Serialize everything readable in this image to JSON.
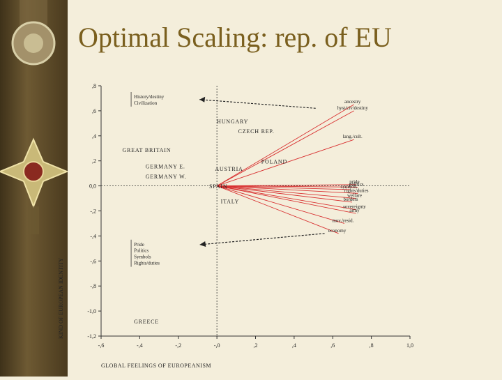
{
  "slide": {
    "title": "Optimal Scaling: rep. of EU"
  },
  "chart_data": {
    "type": "scatter",
    "xlabel": "GLOBAL FEELINGS OF EUROPEANISM",
    "ylabel": "KIND OF EUROPEAN IDENTITY",
    "xlim": [
      -0.6,
      1.0
    ],
    "ylim": [
      -1.2,
      0.8
    ],
    "x_ticks": [
      "-,6",
      "-,4",
      "-,2",
      "-,0",
      ",2",
      ",4",
      ",6",
      ",8",
      "1,0"
    ],
    "y_ticks": [
      ",8",
      ",6",
      ",4",
      ",2",
      "0,0",
      "-,2",
      "-,4",
      "-,6",
      "-,8",
      "-1,0",
      "-1,2"
    ],
    "countries": [
      {
        "name": "HUNGARY",
        "x": 0.0,
        "y": 0.5
      },
      {
        "name": "CZECH REP.",
        "x": 0.11,
        "y": 0.42
      },
      {
        "name": "GREAT BRITAIN",
        "x": -0.49,
        "y": 0.27
      },
      {
        "name": "POLAND",
        "x": 0.23,
        "y": 0.18
      },
      {
        "name": "GERMANY E.",
        "x": -0.37,
        "y": 0.14
      },
      {
        "name": "AUSTRIA",
        "x": -0.01,
        "y": 0.12
      },
      {
        "name": "GERMANY W.",
        "x": -0.37,
        "y": 0.06
      },
      {
        "name": "SPAIN",
        "x": -0.04,
        "y": -0.02
      },
      {
        "name": "ITALY",
        "x": 0.02,
        "y": -0.14
      },
      {
        "name": "GREECE",
        "x": -0.43,
        "y": -1.1
      }
    ],
    "vectors": [
      {
        "label": "ancestry",
        "x": 0.71,
        "y": 0.65
      },
      {
        "label": "hyst/civ/destiny",
        "x": 0.71,
        "y": 0.6
      },
      {
        "label": "lang./cult.",
        "x": 0.71,
        "y": 0.37
      },
      {
        "label": "pride",
        "x": 0.72,
        "y": 0.01
      },
      {
        "label": "politics",
        "x": 0.73,
        "y": -0.01
      },
      {
        "label": "symbols",
        "x": 0.69,
        "y": -0.03
      },
      {
        "label": "rights/duties",
        "x": 0.73,
        "y": -0.06
      },
      {
        "label": "welfare",
        "x": 0.72,
        "y": -0.1
      },
      {
        "label": "borders",
        "x": 0.7,
        "y": -0.13
      },
      {
        "label": "sovereignty",
        "x": 0.72,
        "y": -0.19
      },
      {
        "label": "army",
        "x": 0.72,
        "y": -0.22
      },
      {
        "label": "mov./resid.",
        "x": 0.66,
        "y": -0.3
      },
      {
        "label": "economy",
        "x": 0.63,
        "y": -0.38
      }
    ],
    "annotations": [
      {
        "text": "History/destiny",
        "x": -0.43,
        "y": 0.7
      },
      {
        "text": "Civilization",
        "x": -0.43,
        "y": 0.65
      },
      {
        "text": "Pride",
        "x": -0.43,
        "y": -0.48
      },
      {
        "text": "Politics",
        "x": -0.43,
        "y": -0.53
      },
      {
        "text": "Symbols",
        "x": -0.43,
        "y": -0.58
      },
      {
        "text": "Rights/duties",
        "x": -0.43,
        "y": -0.63
      }
    ],
    "grid": false,
    "colors": {
      "vector": "#d83030",
      "axis": "#333333",
      "title": "#7a5f1e",
      "sidebar": "#5b4a2a"
    }
  }
}
